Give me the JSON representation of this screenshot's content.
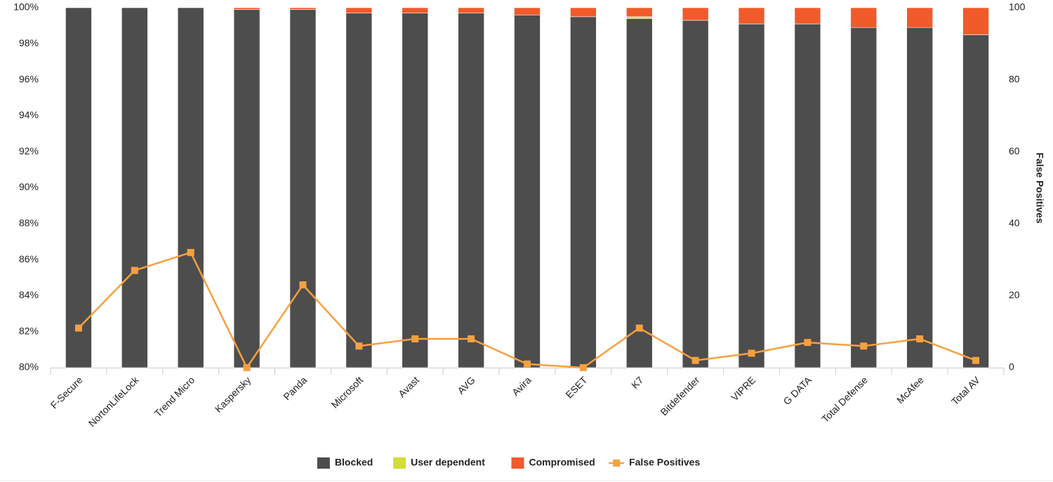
{
  "chart_data": {
    "type": "stacked-bar-line",
    "categories": [
      "F-Secure",
      "NortonLifeLock",
      "Trend Micro",
      "Kaspersky",
      "Panda",
      "Microsoft",
      "Avast",
      "AVG",
      "Avira",
      "ESET",
      "K7",
      "Bitdefender",
      "VIPRE",
      "G DATA",
      "Total Defense",
      "McAfee",
      "Total AV"
    ],
    "series": [
      {
        "name": "Blocked",
        "color": "#4d4d4d",
        "values": [
          100,
          100,
          100,
          99.9,
          99.9,
          99.7,
          99.7,
          99.7,
          99.6,
          99.5,
          99.4,
          99.3,
          99.1,
          99.1,
          98.9,
          98.9,
          98.5
        ]
      },
      {
        "name": "User dependent",
        "color": "#d4dc36",
        "values": [
          0,
          0,
          0,
          0,
          0,
          0,
          0,
          0,
          0,
          0,
          0.1,
          0,
          0,
          0,
          0,
          0,
          0
        ]
      },
      {
        "name": "Compromised",
        "color": "#f15a2b",
        "values": [
          0,
          0,
          0,
          0.1,
          0.1,
          0.3,
          0.3,
          0.3,
          0.4,
          0.5,
          0.5,
          0.7,
          0.9,
          0.9,
          1.1,
          1.1,
          1.5
        ]
      },
      {
        "name": "False Positives",
        "color": "#f7a040",
        "axis": "y2",
        "values": [
          11,
          27,
          32,
          0,
          23,
          6,
          8,
          8,
          1,
          0,
          11,
          2,
          4,
          7,
          6,
          8,
          2
        ]
      }
    ],
    "ylim": [
      80,
      100
    ],
    "yticks": [
      {
        "value": 80,
        "label": "80%"
      },
      {
        "value": 82,
        "label": "82%"
      },
      {
        "value": 84,
        "label": "84%"
      },
      {
        "value": 86,
        "label": "86%"
      },
      {
        "value": 88,
        "label": "88%"
      },
      {
        "value": 90,
        "label": "90%"
      },
      {
        "value": 92,
        "label": "92%"
      },
      {
        "value": 94,
        "label": "94%"
      },
      {
        "value": 96,
        "label": "96%"
      },
      {
        "value": 98,
        "label": "98%"
      },
      {
        "value": 100,
        "label": "100%"
      }
    ],
    "y2lim": [
      0,
      100
    ],
    "y2ticks": [
      0,
      20,
      40,
      60,
      80,
      100
    ],
    "y2label": "False Positives",
    "legend": "bottom"
  }
}
